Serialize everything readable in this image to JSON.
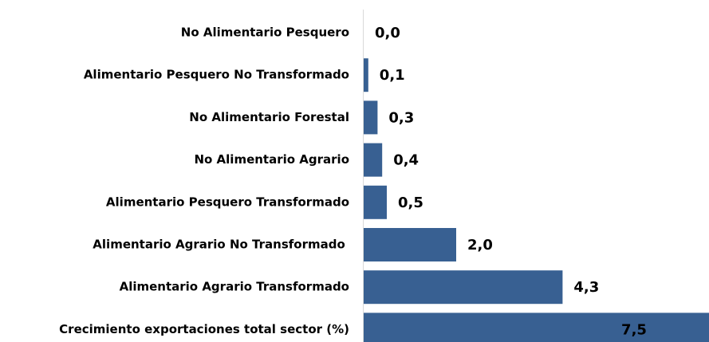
{
  "chart_data": {
    "type": "bar",
    "orientation": "horizontal",
    "categories": [
      "No Alimentario Pesquero",
      "Alimentario Pesquero No Transformado",
      "No Alimentario Forestal",
      "No Alimentario Agrario",
      "Alimentario Pesquero Transformado",
      "Alimentario Agrario No Transformado ",
      "Alimentario Agrario Transformado",
      "Crecimiento exportaciones total sector (%)"
    ],
    "values": [
      0.0,
      0.1,
      0.3,
      0.4,
      0.5,
      2.0,
      4.3,
      7.5
    ],
    "value_labels": [
      "0,0",
      "0,1",
      "0,3",
      "0,4",
      "0,5",
      "2,0",
      "4,3",
      "7,5"
    ],
    "color": "#386092"
  }
}
